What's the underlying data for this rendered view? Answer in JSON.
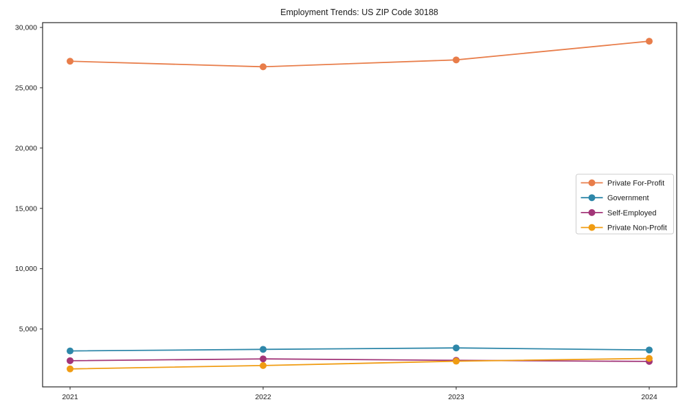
{
  "chart_data": {
    "type": "line",
    "title": "Employment Trends: US ZIP Code 30188",
    "xlabel": "",
    "ylabel": "",
    "x": [
      2021,
      2022,
      2023,
      2024
    ],
    "x_tick_labels": [
      "2021",
      "2022",
      "2023",
      "2024"
    ],
    "y_tick_values": [
      5000,
      10000,
      15000,
      20000,
      25000,
      30000
    ],
    "y_tick_labels": [
      "5,000",
      "10,000",
      "15,000",
      "20,000",
      "25,000",
      "30,000"
    ],
    "ylim": [
      200,
      30400
    ],
    "grid": false,
    "legend_position": "center-right",
    "series": [
      {
        "name": "Private For-Profit",
        "color": "#e87d4a",
        "values": [
          27200,
          26740,
          27310,
          28860
        ]
      },
      {
        "name": "Government",
        "color": "#2e87a9",
        "values": [
          3180,
          3310,
          3430,
          3260
        ]
      },
      {
        "name": "Self-Employed",
        "color": "#a23578",
        "values": [
          2370,
          2520,
          2400,
          2310
        ]
      },
      {
        "name": "Private Non-Profit",
        "color": "#f09c12",
        "values": [
          1690,
          1970,
          2330,
          2560
        ]
      }
    ],
    "style": {
      "spine_color": "#262626",
      "legend_border_color": "#cccccc",
      "legend_background": "#ffffff",
      "marker": "circle",
      "line_width": 1.8,
      "marker_radius": 5
    }
  }
}
